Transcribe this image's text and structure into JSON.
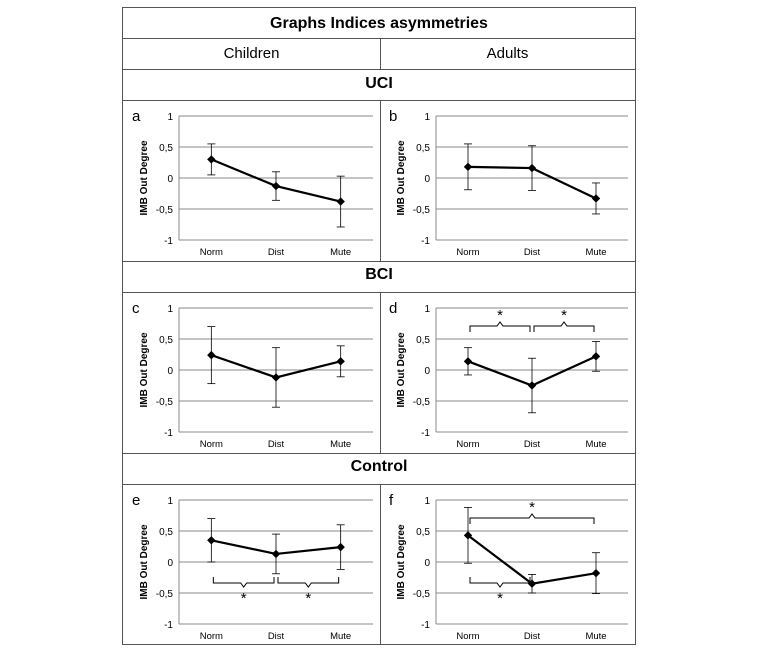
{
  "title": "Graphs Indices asymmetries",
  "columns": [
    "Children",
    "Adults"
  ],
  "sections": [
    "UCI",
    "BCI",
    "Control"
  ],
  "chart_data": [
    {
      "id": "a",
      "panel_letter": "a",
      "section": "UCI",
      "column": "Children",
      "type": "line",
      "categories": [
        "Norm",
        "Dist",
        "Mute"
      ],
      "values": [
        0.3,
        -0.13,
        -0.38
      ],
      "error": [
        0.25,
        0.23,
        0.41
      ],
      "ylabel": "IMB Out Degree",
      "ylim": [
        -1,
        1
      ],
      "yticks": [
        "1",
        "0,5",
        "0",
        "-0,5",
        "-1"
      ],
      "grid": true,
      "annotations": []
    },
    {
      "id": "b",
      "panel_letter": "b",
      "section": "UCI",
      "column": "Adults",
      "type": "line",
      "categories": [
        "Norm",
        "Dist",
        "Mute"
      ],
      "values": [
        0.18,
        0.16,
        -0.33
      ],
      "error": [
        0.37,
        0.36,
        0.25
      ],
      "ylabel": "IMB Out Degree",
      "ylim": [
        -1,
        1
      ],
      "yticks": [
        "1",
        "0,5",
        "0",
        "-0,5",
        "-1"
      ],
      "grid": true,
      "annotations": []
    },
    {
      "id": "c",
      "panel_letter": "c",
      "section": "BCI",
      "column": "Children",
      "type": "line",
      "categories": [
        "Norm",
        "Dist",
        "Mute"
      ],
      "values": [
        0.24,
        -0.12,
        0.14
      ],
      "error": [
        0.46,
        0.48,
        0.25
      ],
      "ylabel": "IMB Out Degree",
      "ylim": [
        -1,
        1
      ],
      "yticks": [
        "1",
        "0,5",
        "0",
        "-0,5",
        "-1"
      ],
      "grid": true,
      "annotations": []
    },
    {
      "id": "d",
      "panel_letter": "d",
      "section": "BCI",
      "column": "Adults",
      "type": "line",
      "categories": [
        "Norm",
        "Dist",
        "Mute"
      ],
      "values": [
        0.14,
        -0.25,
        0.22
      ],
      "error": [
        0.22,
        0.44,
        0.24
      ],
      "ylabel": "IMB Out Degree",
      "ylim": [
        -1,
        1
      ],
      "yticks": [
        "1",
        "0,5",
        "0",
        "-0,5",
        "-1"
      ],
      "grid": true,
      "annotations": [
        {
          "label": "*",
          "from": 0,
          "to": 1,
          "side": "top"
        },
        {
          "label": "*",
          "from": 1,
          "to": 2,
          "side": "top"
        }
      ]
    },
    {
      "id": "e",
      "panel_letter": "e",
      "section": "Control",
      "column": "Children",
      "type": "line",
      "categories": [
        "Norm",
        "Dist",
        "Mute"
      ],
      "values": [
        0.35,
        0.13,
        0.24
      ],
      "error": [
        0.35,
        0.32,
        0.36
      ],
      "ylabel": "IMB Out Degree",
      "ylim": [
        -1,
        1
      ],
      "yticks": [
        "1",
        "0,5",
        "0",
        "-0,5",
        "-1"
      ],
      "grid": true,
      "annotations": [
        {
          "label": "*",
          "from": 0,
          "to": 1,
          "side": "bottom"
        },
        {
          "label": "*",
          "from": 1,
          "to": 2,
          "side": "bottom"
        }
      ]
    },
    {
      "id": "f",
      "panel_letter": "f",
      "section": "Control",
      "column": "Adults",
      "type": "line",
      "categories": [
        "Norm",
        "Dist",
        "Mute"
      ],
      "values": [
        0.43,
        -0.35,
        -0.18
      ],
      "error": [
        0.45,
        0.15,
        0.33
      ],
      "ylabel": "IMB Out Degree",
      "ylim": [
        -1,
        1
      ],
      "yticks": [
        "1",
        "0,5",
        "0",
        "-0,5",
        "-1"
      ],
      "grid": true,
      "annotations": [
        {
          "label": "*",
          "from": 0,
          "to": 2,
          "side": "top"
        },
        {
          "label": "*",
          "from": 0,
          "to": 1,
          "side": "bottom"
        }
      ]
    }
  ]
}
